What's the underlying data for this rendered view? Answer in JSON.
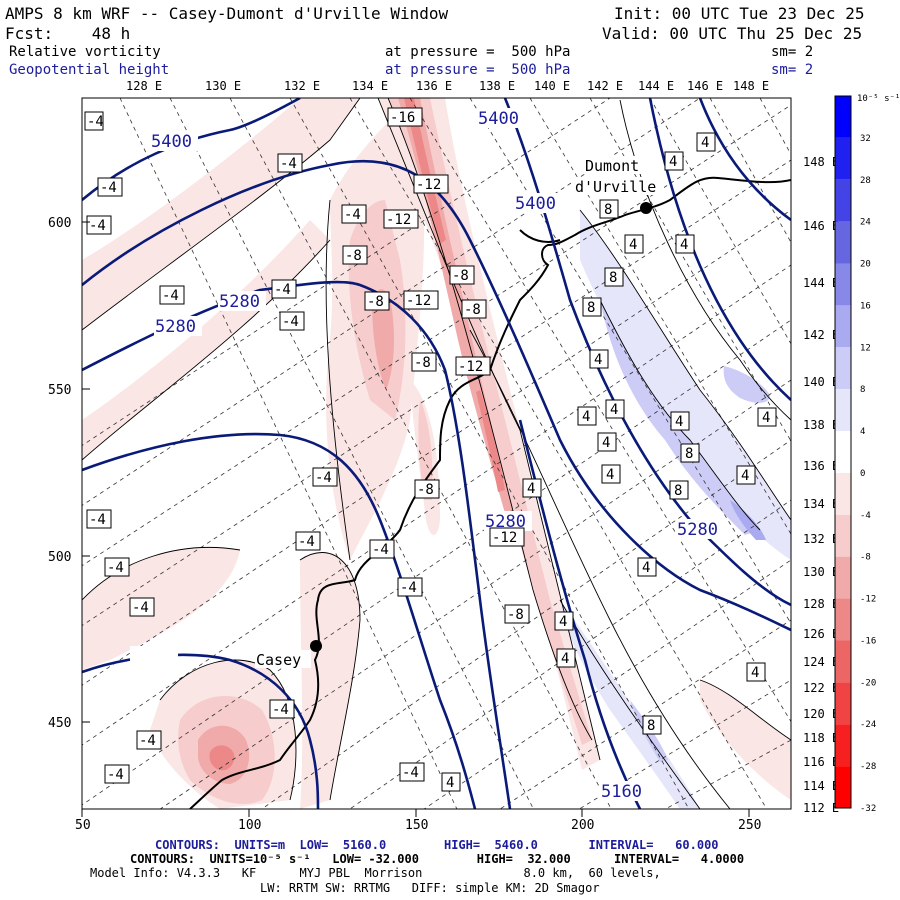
{
  "header": {
    "title": "AMPS 8 km WRF -- Casey-Dumont d'Urville Window",
    "init": "Init: 00 UTC Tue 23 Dec 25",
    "fcst": "Fcst:    48 h",
    "valid": "Valid: 00 UTC Thu 25 Dec 25",
    "field1_name": "Relative vorticity",
    "field1_level": "at pressure =  500 hPa",
    "field1_sm": "sm= 2",
    "field2_name": "Geopotential height",
    "field2_level": "at pressure =  500 hPa",
    "field2_sm": "sm= 2"
  },
  "axes": {
    "top_lon": [
      "128 E",
      "130 E",
      "132 E",
      "134 E",
      "136 E",
      "138 E",
      "140 E",
      "142 E",
      "144 E",
      "146 E",
      "148 E"
    ],
    "right_lon": [
      "148 E",
      "146 E",
      "144 E",
      "142 E",
      "140 E",
      "138 E",
      "136 E",
      "134 E",
      "132 E",
      "130 E",
      "128 E",
      "126 E",
      "124 E",
      "122 E",
      "120 E",
      "118 E",
      "116 E",
      "114 E",
      "112 E"
    ],
    "left_y": [
      "600",
      "550",
      "500",
      "450"
    ],
    "bottom_x": [
      "50",
      "100",
      "150",
      "200",
      "250"
    ]
  },
  "map": {
    "stations": [
      "Dumont",
      "d'Urville",
      "Casey"
    ],
    "height_labels": [
      "5400",
      "5400",
      "5400",
      "5280",
      "5280",
      "5280",
      "5280",
      "5160"
    ],
    "vort_labels": [
      "-4",
      "-4",
      "-4",
      "-4",
      "-4",
      "-4",
      "-4",
      "-4",
      "-4",
      "-4",
      "-4",
      "-4",
      "-4",
      "-4",
      "-4",
      "-4",
      "-4",
      "-4",
      "-4",
      "-8",
      "-8",
      "-8",
      "-8",
      "-8",
      "-8",
      "-8",
      "-12",
      "-12",
      "-12",
      "-12",
      "-12",
      "-16",
      "4",
      "4",
      "4",
      "4",
      "4",
      "4",
      "4",
      "4",
      "4",
      "4",
      "4",
      "4",
      "4",
      "4",
      "4",
      "4",
      "4",
      "4",
      "8",
      "8",
      "8",
      "8",
      "8",
      "8"
    ]
  },
  "colorbar": {
    "unit": "10⁻⁵ s⁻¹",
    "ticks": [
      "32",
      "28",
      "24",
      "20",
      "16",
      "12",
      "8",
      "4",
      "0",
      "-4",
      "-8",
      "-12",
      "-16",
      "-20",
      "-24",
      "-28",
      "-32"
    ],
    "colors": [
      "#0000ff",
      "#2020f0",
      "#4444e6",
      "#6666e0",
      "#8888e8",
      "#aaaaf0",
      "#ccccf6",
      "#e6e6fb",
      "#ffffff",
      "#fbe6e6",
      "#f6cccc",
      "#f0aaaa",
      "#ec8888",
      "#ec6666",
      "#f04444",
      "#f62020",
      "#ff0000"
    ]
  },
  "footer": {
    "line1": "CONTOURS:  UNITS=m  LOW=  5160.0        HIGH=  5460.0       INTERVAL=   60.000",
    "line2": "CONTOURS:  UNITS=10⁻⁵ s⁻¹   LOW= -32.000        HIGH=  32.000      INTERVAL=   4.0000",
    "line3": "Model Info: V4.3.3   KF      MYJ PBL  Morrison              8.0 km,  60 levels,",
    "line4": "LW: RRTM SW: RRTMG   DIFF: simple KM: 2D Smagor"
  }
}
